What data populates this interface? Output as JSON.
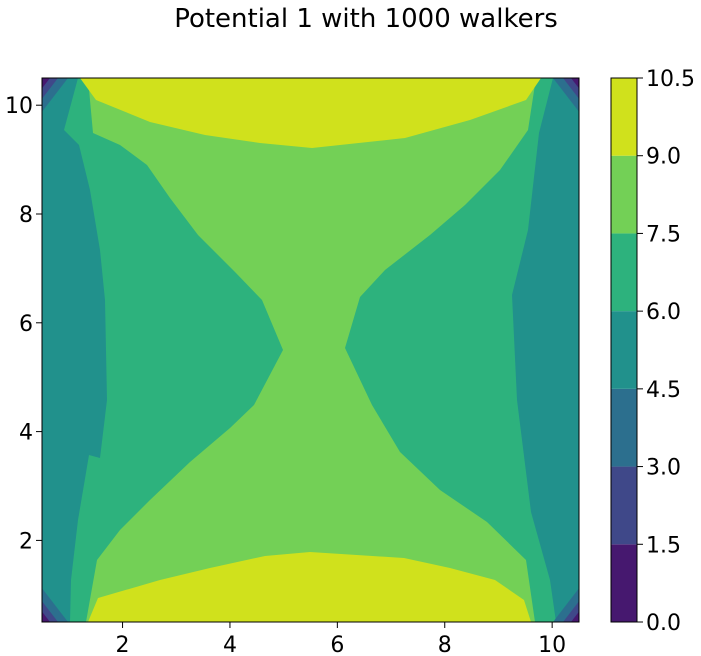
{
  "chart_data": {
    "type": "contourf",
    "title": "Potential 1 with 1000 walkers",
    "xlabel": "",
    "ylabel": "",
    "xlim": [
      0.5,
      10.5
    ],
    "ylim": [
      0.5,
      10.5
    ],
    "x_ticks": [
      "2",
      "4",
      "6",
      "8",
      "10"
    ],
    "y_ticks": [
      "2",
      "4",
      "6",
      "8",
      "10"
    ],
    "colorbar": {
      "levels": [
        0.0,
        1.5,
        3.0,
        4.5,
        6.0,
        7.5,
        9.0,
        10.5
      ],
      "tick_labels": [
        "0.0",
        "1.5",
        "3.0",
        "4.5",
        "6.0",
        "7.5",
        "9.0",
        "10.5"
      ],
      "colors": [
        "#46186f",
        "#3f4889",
        "#2c6f8e",
        "#21918c",
        "#2db27d",
        "#73d056",
        "#d0e11c"
      ]
    },
    "grid": false,
    "description_levels": {
      "center_band_level": "7.5–9.0",
      "top_bottom_band_level": "9.0–10.5",
      "side_inner_level": "6.0–7.5",
      "side_outer_level": "4.5–6.0",
      "corner_levels": "0.0–4.5"
    }
  }
}
